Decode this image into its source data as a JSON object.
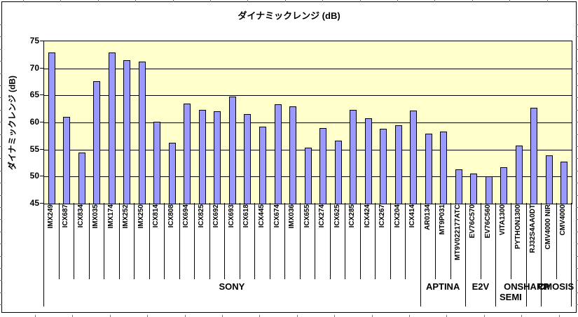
{
  "chart_data": {
    "type": "bar",
    "title": "ダイナミックレンジ (dB)",
    "xlabel": "",
    "ylabel": "ダイナミックレンジ (dB)",
    "ylim": [
      45,
      75
    ],
    "y_ticks": [
      75,
      70,
      65,
      60,
      55,
      50,
      45
    ],
    "grid": "horizontal major gridlines every 5 dB",
    "legend": "none",
    "categories": [
      "IMX249",
      "ICX687",
      "ICX834",
      "IMX035",
      "IMX174",
      "IMX252",
      "IMX250",
      "ICX814",
      "ICX808",
      "ICX694",
      "ICX825",
      "ICX692",
      "ICX693",
      "ICX618",
      "ICX445",
      "ICX674",
      "IMX036",
      "ICX655",
      "ICX274",
      "ICX625",
      "ICX285",
      "ICX424",
      "ICX267",
      "ICX204",
      "ICX414",
      "AR0134",
      "MT9P031",
      "MT9V022177ATC",
      "EV76C570",
      "EV76C560",
      "VITA1300",
      "PYTHON1300",
      "RJ32S4AA0DT",
      "CMV4000 NIR",
      "CMV4000"
    ],
    "values": [
      72.9,
      61.1,
      54.5,
      67.6,
      73.0,
      71.5,
      71.2,
      60.1,
      56.3,
      63.5,
      62.3,
      62.1,
      64.8,
      61.5,
      59.2,
      63.4,
      63.0,
      55.4,
      59.0,
      56.7,
      62.3,
      60.8,
      58.8,
      59.5,
      62.2,
      57.9,
      58.3,
      51.4,
      50.6,
      50.1,
      51.7,
      55.8,
      62.7,
      53.9,
      52.8
    ],
    "groups": [
      {
        "label": "SONY",
        "lines": [
          "SONY"
        ],
        "start": 0,
        "count": 25
      },
      {
        "label": "APTINA",
        "lines": [
          "APTINA"
        ],
        "start": 25,
        "count": 3
      },
      {
        "label": "E2V",
        "lines": [
          "E2V"
        ],
        "start": 28,
        "count": 2
      },
      {
        "label": "ON SEMI",
        "lines": [
          "ON",
          "SEMI"
        ],
        "start": 30,
        "count": 2
      },
      {
        "label": "SHARP",
        "lines": [
          "SHARP"
        ],
        "start": 32,
        "count": 1
      },
      {
        "label": "CMOSIS",
        "lines": [
          "CMOSIS"
        ],
        "start": 33,
        "count": 2
      }
    ],
    "colors": {
      "bar_fill": "#9999FF",
      "bar_border": "#000000",
      "plot_background": "#FFFFCC",
      "chart_background": "#FFFFFF",
      "gridline": "#000000",
      "text": "#000000"
    }
  }
}
